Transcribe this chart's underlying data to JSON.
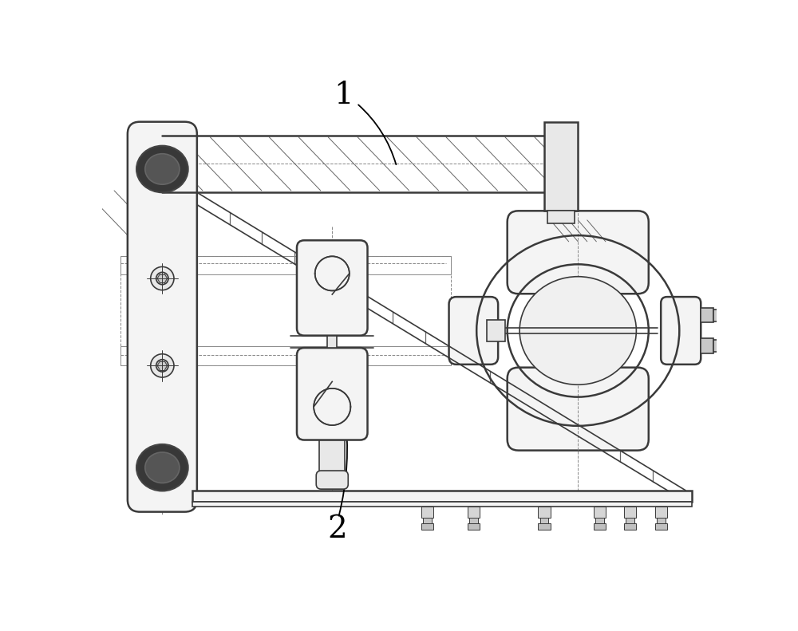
{
  "background_color": "#ffffff",
  "line_color": "#3a3a3a",
  "dark_fill": "#2d2d2d",
  "mid_fill": "#555555",
  "light_fill": "#e8e8e8",
  "very_light": "#f4f4f4",
  "hatch_color": "#666666",
  "dash_color": "#888888",
  "figsize": [
    10.0,
    7.91
  ],
  "dpi": 100
}
